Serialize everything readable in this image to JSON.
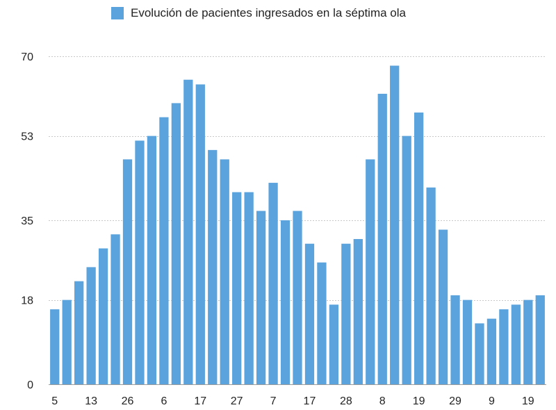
{
  "chart_data": {
    "type": "bar",
    "legend": {
      "label": "Evolución de pacientes ingresados en la séptima ola",
      "color": "#5ba3dd"
    },
    "ylim": [
      0,
      70
    ],
    "yticks": [
      0,
      18,
      35,
      53,
      70
    ],
    "grid": true,
    "legend_position": "top",
    "bar_color": "#5ba3dd",
    "x_tick_labels": [
      {
        "index": 0,
        "label": "5"
      },
      {
        "index": 3,
        "label": "13"
      },
      {
        "index": 6,
        "label": "26"
      },
      {
        "index": 9,
        "label": "6"
      },
      {
        "index": 12,
        "label": "17"
      },
      {
        "index": 15,
        "label": "27"
      },
      {
        "index": 18,
        "label": "7"
      },
      {
        "index": 21,
        "label": "17"
      },
      {
        "index": 24,
        "label": "28"
      },
      {
        "index": 27,
        "label": "8"
      },
      {
        "index": 30,
        "label": "19"
      },
      {
        "index": 33,
        "label": "29"
      },
      {
        "index": 36,
        "label": "9"
      },
      {
        "index": 39,
        "label": "19"
      }
    ],
    "values": [
      16,
      18,
      22,
      25,
      29,
      32,
      48,
      52,
      53,
      57,
      60,
      65,
      64,
      50,
      48,
      41,
      41,
      37,
      43,
      35,
      37,
      30,
      26,
      17,
      30,
      31,
      48,
      62,
      68,
      53,
      58,
      42,
      33,
      19,
      18,
      13,
      14,
      16,
      17,
      18,
      19
    ]
  }
}
